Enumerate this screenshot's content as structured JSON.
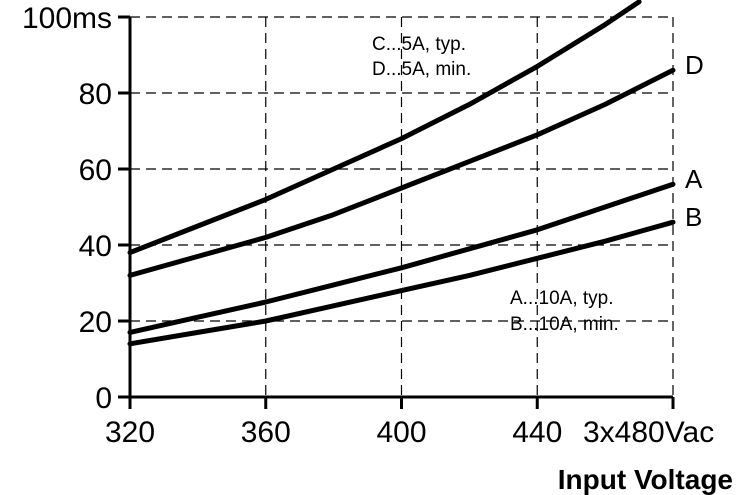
{
  "chart_data": {
    "type": "line",
    "xlabel": "Input Voltage",
    "xlim": [
      320,
      480
    ],
    "ylim": [
      0,
      100
    ],
    "x_ticks": [
      "320",
      "360",
      "400",
      "440",
      "3x480Vac"
    ],
    "y_ticks": [
      "0",
      "20",
      "40",
      "60",
      "80",
      "100ms"
    ],
    "grid": true,
    "legend": {
      "top": [
        "C...5A, typ.",
        "D...5A,  min."
      ],
      "bottom": [
        "A...10A, typ.",
        "B...10A,  min."
      ]
    },
    "series": [
      {
        "name": "C",
        "label": "",
        "x": [
          320,
          340,
          360,
          380,
          400,
          420,
          440,
          460,
          470
        ],
        "y": [
          38,
          45,
          52,
          60,
          68,
          77,
          87,
          98,
          104
        ]
      },
      {
        "name": "D",
        "label": "D",
        "x": [
          320,
          340,
          360,
          380,
          400,
          420,
          440,
          460,
          480
        ],
        "y": [
          32,
          37,
          42,
          48,
          55,
          62,
          69,
          77,
          86
        ]
      },
      {
        "name": "A",
        "label": "A",
        "x": [
          320,
          340,
          360,
          380,
          400,
          420,
          440,
          460,
          480
        ],
        "y": [
          17,
          21,
          25,
          29.5,
          34,
          39,
          44,
          50,
          56
        ]
      },
      {
        "name": "B",
        "label": "B",
        "x": [
          320,
          340,
          360,
          380,
          400,
          420,
          440,
          460,
          480
        ],
        "y": [
          14,
          17,
          20,
          24,
          28,
          32,
          36.5,
          41,
          46
        ]
      }
    ]
  }
}
